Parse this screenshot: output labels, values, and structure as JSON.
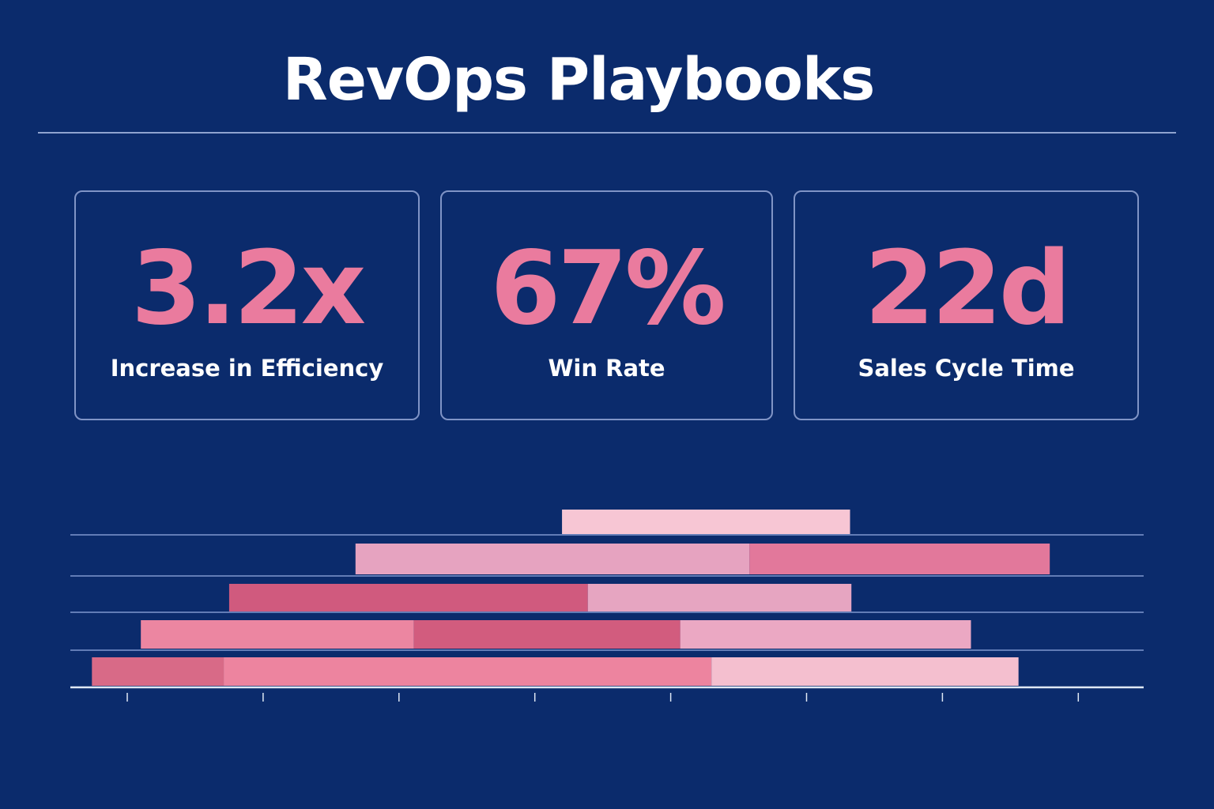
{
  "title": "RevOps Playbooks",
  "stats": [
    {
      "value": "3.2x",
      "label": "Increase in Efficiency"
    },
    {
      "value": "67%",
      "label": "Win Rate"
    },
    {
      "value": "22d",
      "label": "Sales Cycle Time"
    }
  ],
  "chart_data": {
    "type": "bar",
    "orientation": "horizontal-stacked-floating",
    "title": "",
    "xlabel": "",
    "ylabel": "",
    "x_ticks_count": 8,
    "xlim": [
      -0.4,
      7.0
    ],
    "grid": true,
    "rows": [
      {
        "segments": [
          {
            "start": 3.2,
            "end": 5.32,
            "color": "#f7c6d4"
          }
        ]
      },
      {
        "segments": [
          {
            "start": 1.68,
            "end": 4.58,
            "color": "#e6a3c0"
          },
          {
            "start": 4.58,
            "end": 6.79,
            "color": "#e2789b"
          }
        ]
      },
      {
        "segments": [
          {
            "start": 0.75,
            "end": 3.39,
            "color": "#d05a7e"
          },
          {
            "start": 3.39,
            "end": 5.33,
            "color": "#e6a5c1"
          }
        ]
      },
      {
        "segments": [
          {
            "start": 0.1,
            "end": 2.11,
            "color": "#ec86a1"
          },
          {
            "start": 2.11,
            "end": 4.07,
            "color": "#d25c7e"
          },
          {
            "start": 4.07,
            "end": 6.21,
            "color": "#eba8c3"
          }
        ]
      },
      {
        "segments": [
          {
            "start": -0.26,
            "end": 0.71,
            "color": "#d86a87"
          },
          {
            "start": 0.71,
            "end": 4.3,
            "color": "#ed849f"
          },
          {
            "start": 4.3,
            "end": 6.56,
            "color": "#f4bfcf"
          }
        ]
      }
    ]
  },
  "colors": {
    "background": "#0b2b6c",
    "accent": "#ea7b9e",
    "border": "#8094c6"
  }
}
